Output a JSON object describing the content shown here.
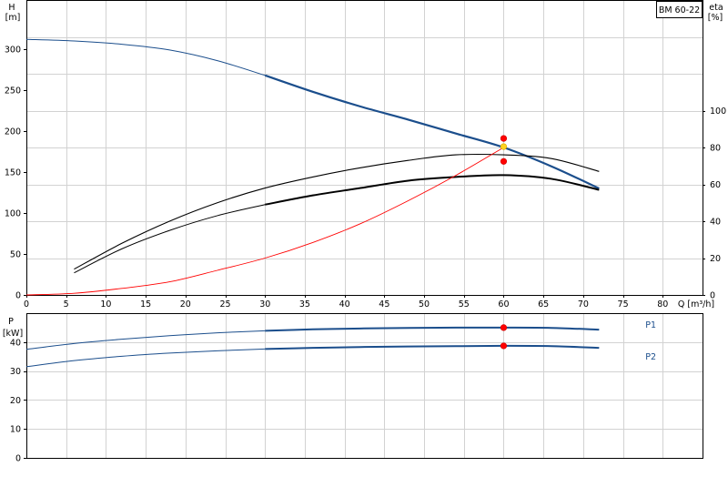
{
  "chart_data": [
    {
      "type": "line",
      "panel": "head-efficiency",
      "title": "BM 60-22",
      "xlabel": "Q [m³/h]",
      "ylabel_left": "H\n[m]",
      "ylabel_right": "eta\n[%]",
      "xlim": [
        0,
        85
      ],
      "ylim_left": [
        0,
        360
      ],
      "ylim_right": [
        0,
        160
      ],
      "x_ticks": [
        0,
        5,
        10,
        15,
        20,
        25,
        30,
        35,
        40,
        45,
        50,
        55,
        60,
        65,
        70,
        75,
        80
      ],
      "y_ticks_left": [
        0,
        50,
        100,
        150,
        200,
        250,
        300
      ],
      "y_ticks_right": [
        0,
        20,
        40,
        60,
        80,
        100
      ],
      "grid": true,
      "series": [
        {
          "role": "head-curve",
          "axis": "left",
          "color": "#1b4e8c",
          "x": [
            0,
            6,
            12,
            18,
            24,
            30,
            36,
            42,
            48,
            54,
            60,
            66,
            72
          ],
          "y": [
            312,
            310,
            306,
            299,
            286,
            268,
            248,
            230,
            214,
            197,
            180,
            157,
            130
          ]
        },
        {
          "role": "efficiency-curve",
          "axis": "right",
          "color": "#000000",
          "x": [
            6,
            12,
            18,
            24,
            30,
            36,
            42,
            48,
            54,
            60,
            66,
            72
          ],
          "y": [
            14,
            28,
            40,
            50,
            58,
            64,
            69,
            73,
            76,
            76,
            74,
            67
          ]
        },
        {
          "role": "efficiency-curve-2",
          "axis": "right",
          "color": "#000000",
          "x": [
            6,
            12,
            18,
            24,
            30,
            36,
            42,
            48,
            54,
            60,
            66,
            72
          ],
          "y": [
            12,
            25,
            35,
            43,
            49,
            54,
            58,
            62,
            64,
            65,
            63,
            57
          ]
        },
        {
          "role": "system-curve",
          "axis": "left",
          "color": "#ff0000",
          "x": [
            0,
            6,
            12,
            18,
            24,
            30,
            36,
            42,
            48,
            54,
            60
          ],
          "y": [
            0,
            2,
            8,
            16,
            30,
            45,
            64,
            87,
            115,
            146,
            180
          ]
        }
      ],
      "markers": [
        {
          "axis": "left",
          "x": 60,
          "y": 191,
          "color": "#ff0000"
        },
        {
          "axis": "left",
          "x": 60,
          "y": 181,
          "color": "#ffd21f"
        },
        {
          "axis": "left",
          "x": 60,
          "y": 163,
          "color": "#ff0000"
        }
      ]
    },
    {
      "type": "line",
      "panel": "power",
      "xlabel": "",
      "ylabel": "P\n[kW]",
      "xlim": [
        0,
        85
      ],
      "ylim": [
        0,
        50
      ],
      "y_ticks": [
        0,
        10,
        20,
        30,
        40
      ],
      "grid": true,
      "series": [
        {
          "name": "P1",
          "color": "#1b4e8c",
          "x": [
            0,
            6,
            12,
            18,
            24,
            30,
            36,
            42,
            48,
            54,
            60,
            66,
            72
          ],
          "y": [
            37.5,
            39.5,
            41.0,
            42.2,
            43.2,
            43.9,
            44.4,
            44.7,
            44.9,
            45.0,
            45.0,
            44.9,
            44.3
          ]
        },
        {
          "name": "P2",
          "color": "#1b4e8c",
          "x": [
            0,
            6,
            12,
            18,
            24,
            30,
            36,
            42,
            48,
            54,
            60,
            66,
            72
          ],
          "y": [
            31.5,
            33.6,
            35.1,
            36.2,
            37.0,
            37.6,
            38.0,
            38.3,
            38.5,
            38.6,
            38.7,
            38.6,
            38.0
          ]
        }
      ],
      "markers": [
        {
          "x": 60,
          "y": 45.0,
          "color": "#ff0000"
        },
        {
          "x": 60,
          "y": 38.7,
          "color": "#ff0000"
        }
      ]
    }
  ]
}
